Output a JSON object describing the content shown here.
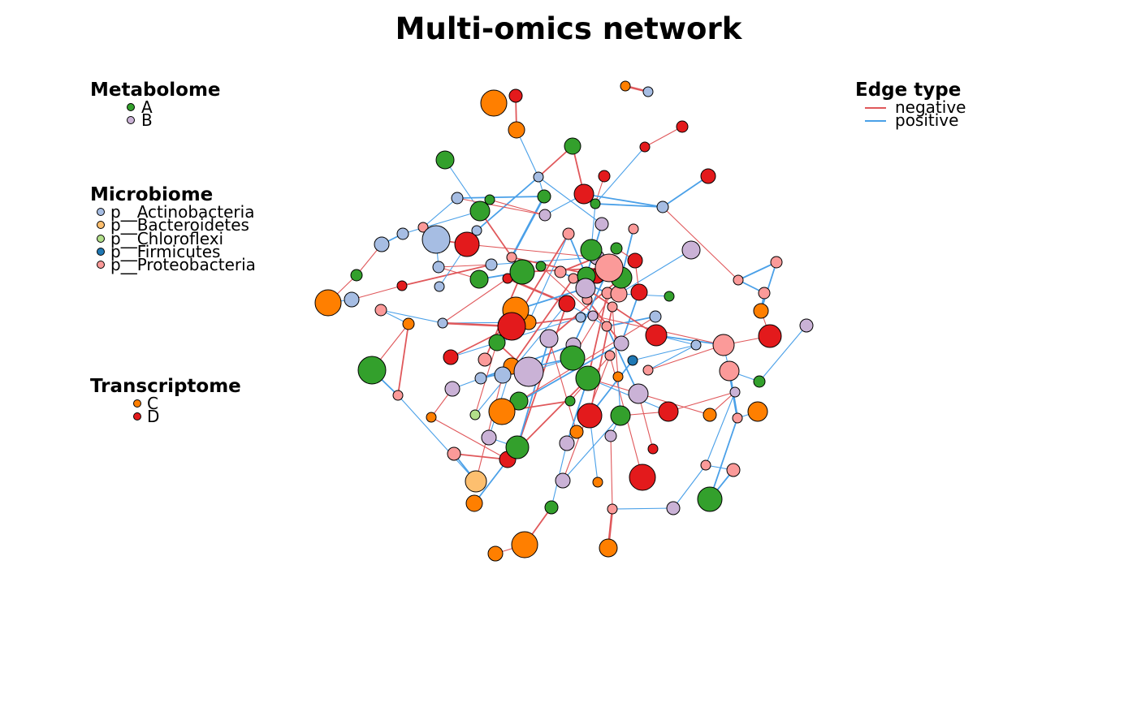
{
  "title": "Multi-omics network",
  "legend_metabolome": {
    "title": "Metabolome",
    "items": [
      {
        "label": "A",
        "color": "#33a02c"
      },
      {
        "label": "B",
        "color": "#cab2d6"
      }
    ]
  },
  "legend_microbiome": {
    "title": "Microbiome",
    "items": [
      {
        "label": "p__Actinobacteria",
        "color": "#a6bde3"
      },
      {
        "label": "p__Bacteroidetes",
        "color": "#fdbf6f"
      },
      {
        "label": "p__Chloroflexi",
        "color": "#b2df8a"
      },
      {
        "label": "p__Firmicutes",
        "color": "#1f78b4"
      },
      {
        "label": "p__Proteobacteria",
        "color": "#fb9a99"
      }
    ]
  },
  "legend_transcriptome": {
    "title": "Transcriptome",
    "items": [
      {
        "label": "C",
        "color": "#ff7f00"
      },
      {
        "label": "D",
        "color": "#e31a1c"
      }
    ]
  },
  "legend_edge": {
    "title": "Edge type",
    "items": [
      {
        "label": "negative",
        "color": "#e0585b"
      },
      {
        "label": "positive",
        "color": "#4aa0e8"
      }
    ]
  }
}
